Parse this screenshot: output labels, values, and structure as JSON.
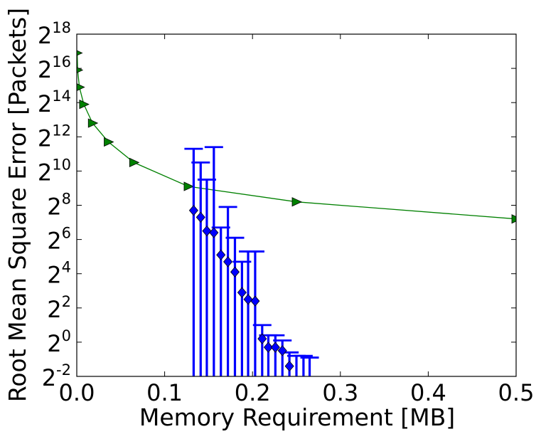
{
  "chart_data": {
    "type": "scatter",
    "xlabel": "Memory Requirement [MB]",
    "ylabel": "Root Mean Square Error [Packets]",
    "xlim": [
      0.0,
      0.5
    ],
    "ylim_log2": [
      -2,
      18
    ],
    "y_scale": "log2",
    "grid": false,
    "x_ticks": [
      {
        "value": 0.0,
        "label": "0.0"
      },
      {
        "value": 0.1,
        "label": "0.1"
      },
      {
        "value": 0.2,
        "label": "0.2"
      },
      {
        "value": 0.3,
        "label": "0.3"
      },
      {
        "value": 0.4,
        "label": "0.4"
      },
      {
        "value": 0.5,
        "label": "0.5"
      }
    ],
    "y_ticks": [
      {
        "exp": -2,
        "base": "2",
        "sup": "-2"
      },
      {
        "exp": 0,
        "base": "2",
        "sup": "0"
      },
      {
        "exp": 2,
        "base": "2",
        "sup": "2"
      },
      {
        "exp": 4,
        "base": "2",
        "sup": "4"
      },
      {
        "exp": 6,
        "base": "2",
        "sup": "6"
      },
      {
        "exp": 8,
        "base": "2",
        "sup": "8"
      },
      {
        "exp": 10,
        "base": "2",
        "sup": "10"
      },
      {
        "exp": 12,
        "base": "2",
        "sup": "12"
      },
      {
        "exp": 14,
        "base": "2",
        "sup": "14"
      },
      {
        "exp": 16,
        "base": "2",
        "sup": "16"
      },
      {
        "exp": 18,
        "base": "2",
        "sup": "18"
      }
    ],
    "series": [
      {
        "color": "#008000",
        "marker": "triangle-right",
        "line": true,
        "points": [
          {
            "x": 0.0005,
            "y_exp": 16.9
          },
          {
            "x": 0.001,
            "y_exp": 15.9
          },
          {
            "x": 0.003,
            "y_exp": 14.9
          },
          {
            "x": 0.008,
            "y_exp": 13.9
          },
          {
            "x": 0.018,
            "y_exp": 12.8
          },
          {
            "x": 0.036,
            "y_exp": 11.7
          },
          {
            "x": 0.065,
            "y_exp": 10.5
          },
          {
            "x": 0.127,
            "y_exp": 9.1
          },
          {
            "x": 0.25,
            "y_exp": 8.2
          },
          {
            "x": 0.5,
            "y_exp": 7.2
          }
        ]
      },
      {
        "color": "#0000ff",
        "marker": "diamond",
        "line": false,
        "error_bars": true,
        "points": [
          {
            "x": 0.133,
            "y_exp": 7.7,
            "err_hi_exp": 11.3
          },
          {
            "x": 0.141,
            "y_exp": 7.3,
            "err_hi_exp": 10.5
          },
          {
            "x": 0.148,
            "y_exp": 6.5,
            "err_hi_exp": 9.5
          },
          {
            "x": 0.156,
            "y_exp": 6.4,
            "err_hi_exp": 11.4
          },
          {
            "x": 0.164,
            "y_exp": 5.1,
            "err_hi_exp": 6.7
          },
          {
            "x": 0.172,
            "y_exp": 4.7,
            "err_hi_exp": 7.9
          },
          {
            "x": 0.18,
            "y_exp": 4.1,
            "err_hi_exp": 6.1
          },
          {
            "x": 0.188,
            "y_exp": 2.9,
            "err_hi_exp": 4.7
          },
          {
            "x": 0.195,
            "y_exp": 2.5,
            "err_hi_exp": 5.3
          },
          {
            "x": 0.203,
            "y_exp": 2.4,
            "err_hi_exp": 5.3
          },
          {
            "x": 0.211,
            "y_exp": 0.2,
            "err_hi_exp": 1.0
          },
          {
            "x": 0.218,
            "y_exp": -0.3,
            "err_hi_exp": 0.4
          },
          {
            "x": 0.226,
            "y_exp": -0.3,
            "err_hi_exp": 0.4
          },
          {
            "x": 0.234,
            "y_exp": -0.5,
            "err_hi_exp": 0.1
          },
          {
            "x": 0.242,
            "y_exp": -1.4,
            "err_hi_exp": -0.6
          },
          {
            "x": 0.25,
            "y_exp": -2.3,
            "err_hi_exp": -0.8
          },
          {
            "x": 0.258,
            "y_exp": -2.6,
            "err_hi_exp": -0.8
          },
          {
            "x": 0.265,
            "y_exp": -2.7,
            "err_hi_exp": -0.9
          }
        ]
      }
    ]
  }
}
